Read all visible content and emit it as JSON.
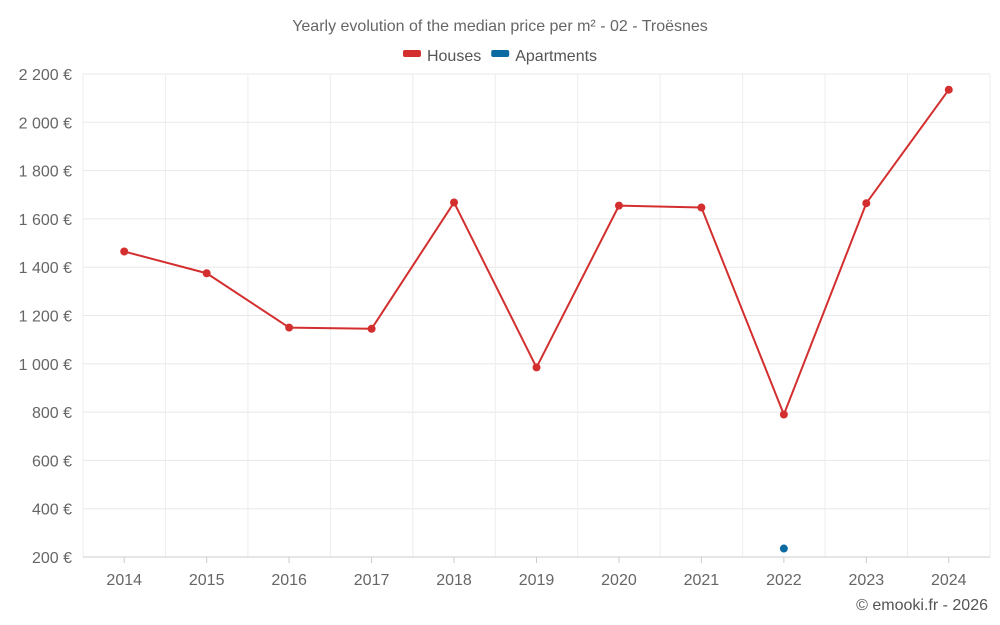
{
  "chart_data": {
    "type": "line",
    "title": "Yearly evolution of the median price per m² - 02 - Troësnes",
    "xlabel": "",
    "ylabel": "",
    "categories": [
      "2014",
      "2015",
      "2016",
      "2017",
      "2018",
      "2019",
      "2020",
      "2021",
      "2022",
      "2023",
      "2024"
    ],
    "ylim": [
      200,
      2200
    ],
    "yticks": [
      200,
      400,
      600,
      800,
      1000,
      1200,
      1400,
      1600,
      1800,
      2000,
      2200
    ],
    "ytick_labels": [
      "200 €",
      "400 €",
      "600 €",
      "800 €",
      "1 000 €",
      "1 200 €",
      "1 400 €",
      "1 600 €",
      "1 800 €",
      "2 000 €",
      "2 200 €"
    ],
    "grid": true,
    "legend_position": "top-center",
    "series": [
      {
        "name": "Houses",
        "color": "#d32f2f",
        "values": [
          1465,
          1375,
          1150,
          1145,
          1668,
          985,
          1655,
          1647,
          790,
          1665,
          2135
        ]
      },
      {
        "name": "Apartments",
        "color": "#0b6aa2",
        "values": [
          null,
          null,
          null,
          null,
          null,
          null,
          null,
          null,
          235,
          null,
          null
        ]
      }
    ]
  },
  "credit": "© emooki.fr - 2026"
}
